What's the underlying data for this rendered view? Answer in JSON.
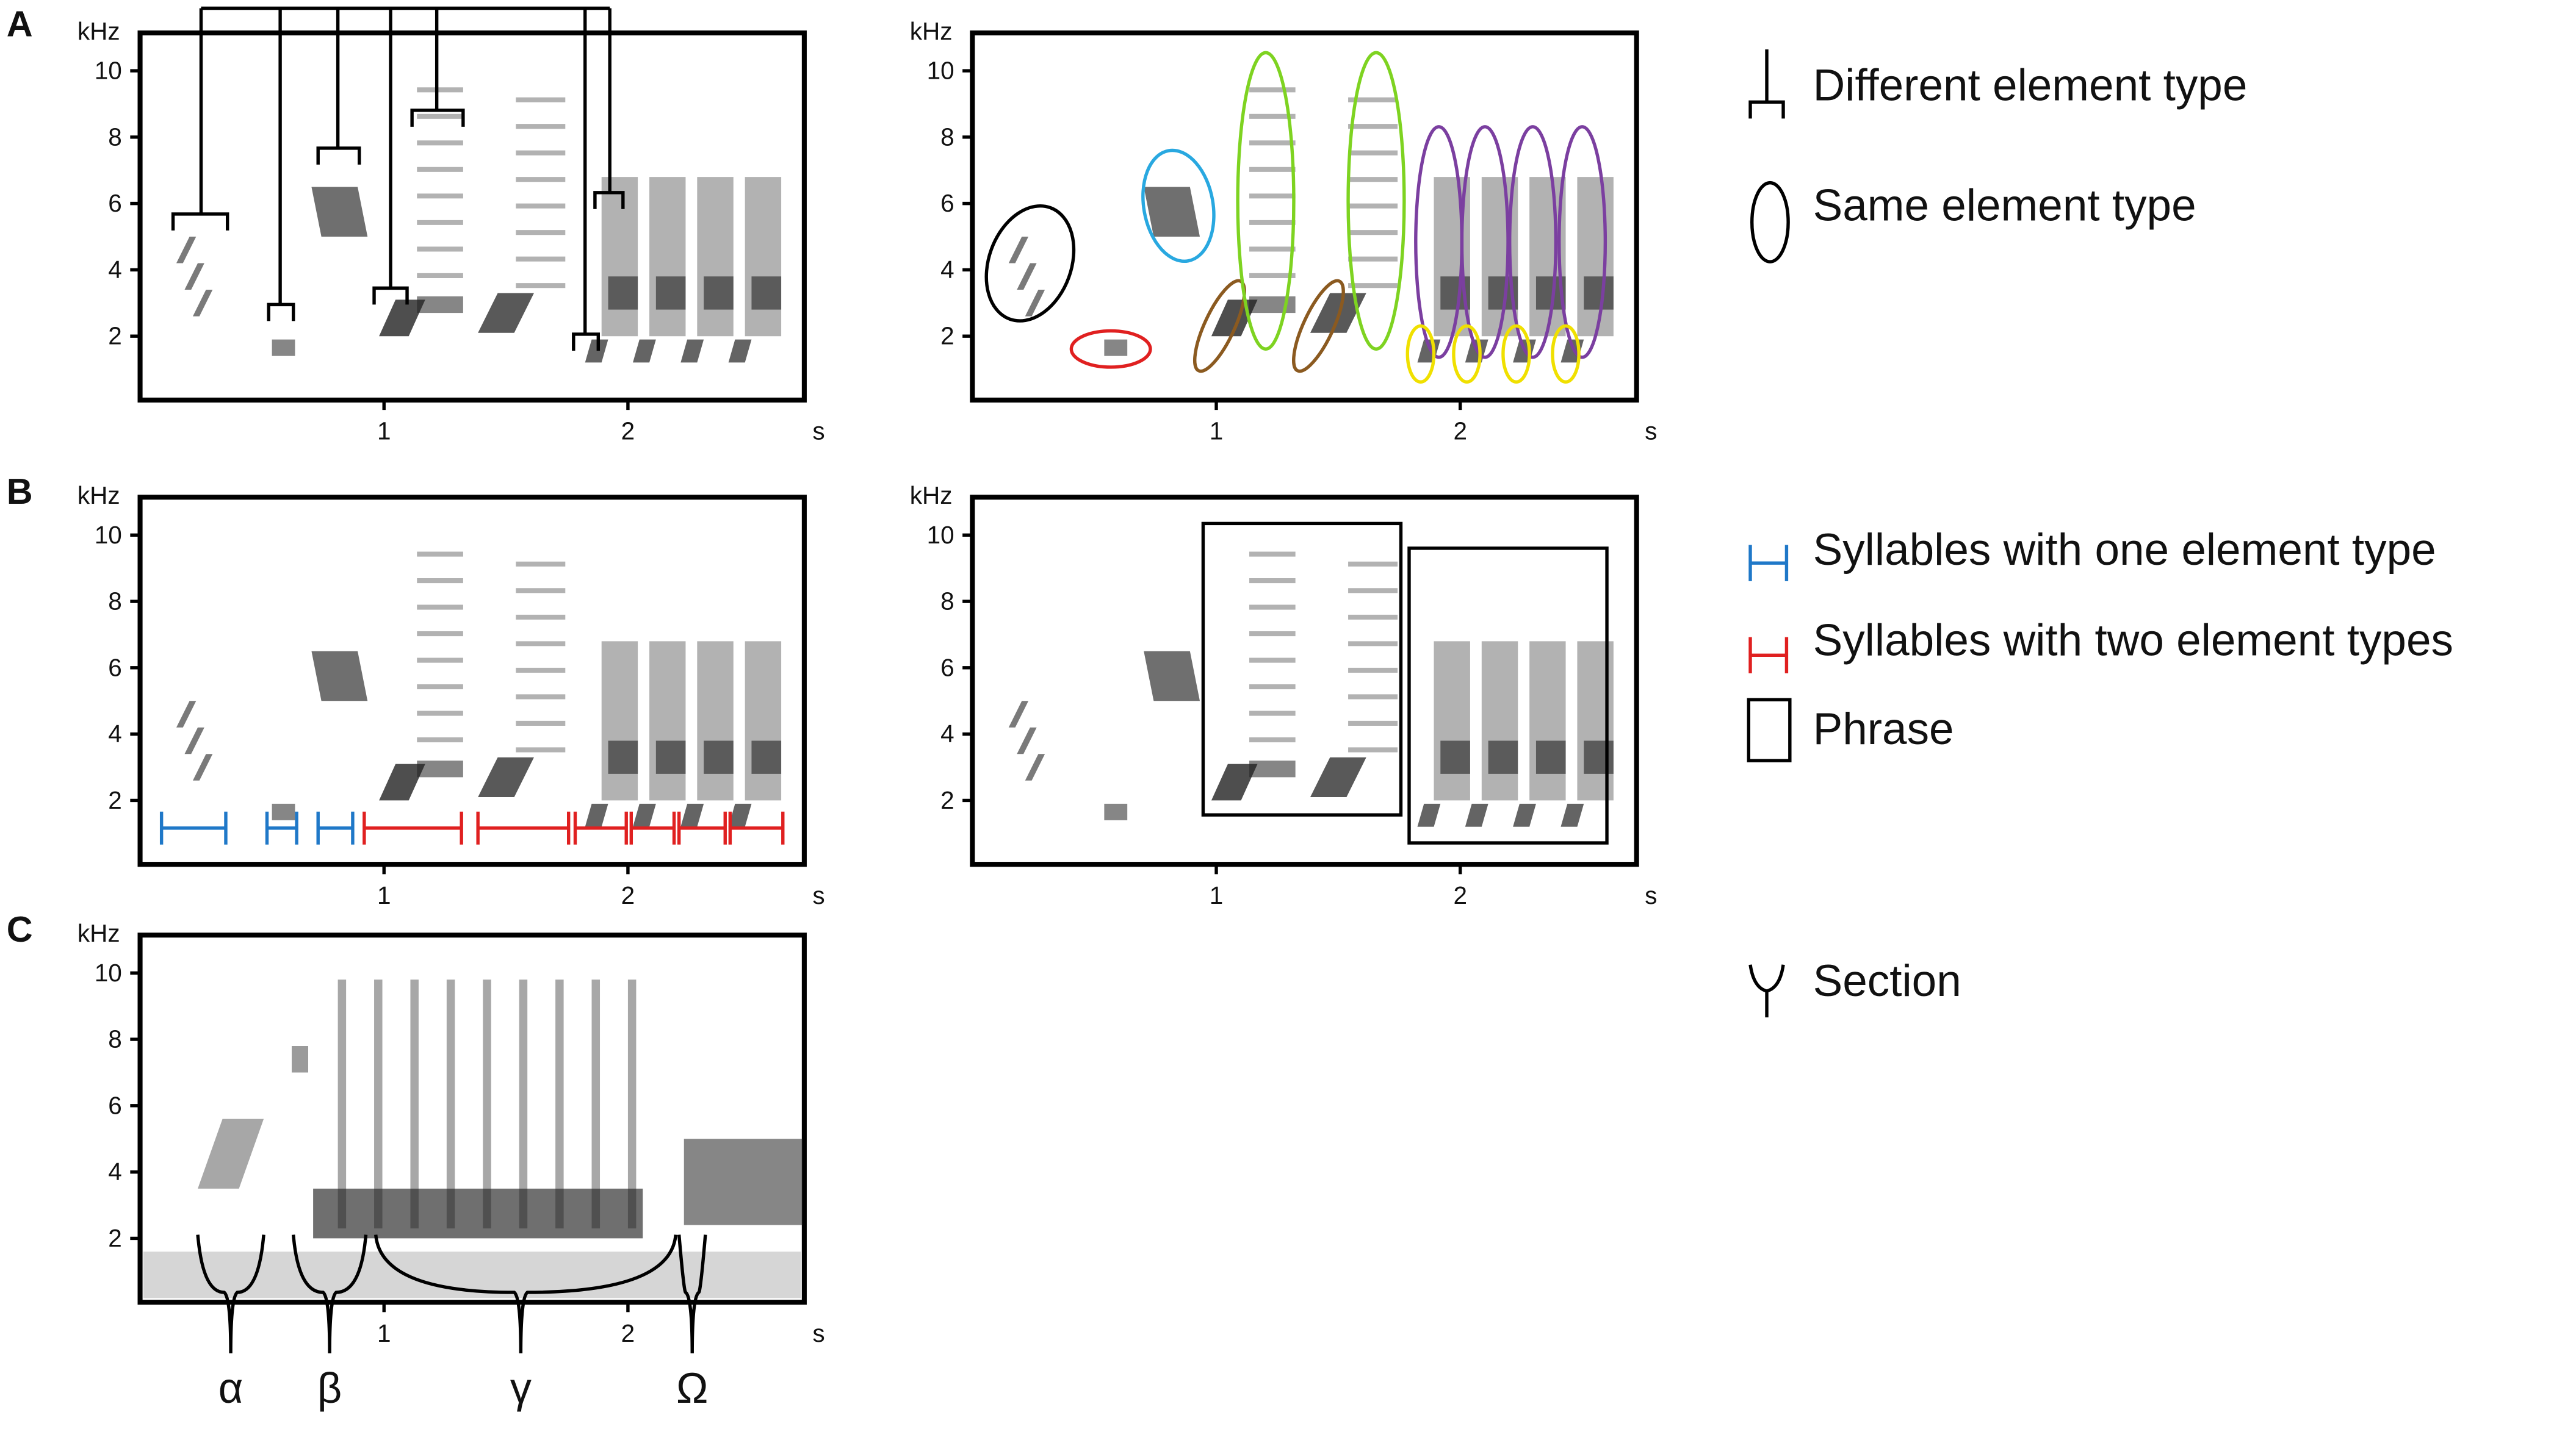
{
  "panels": [
    {
      "label": "A"
    },
    {
      "label": "B"
    },
    {
      "label": "C"
    }
  ],
  "axes": {
    "y_unit": "kHz",
    "x_unit": "s",
    "yticks": [
      10,
      8,
      6,
      4,
      2
    ],
    "xticks": [
      1,
      2
    ]
  },
  "legend": {
    "items": [
      {
        "label": "Different element type"
      },
      {
        "label": "Same element type"
      },
      {
        "label": "Syllables with one element type"
      },
      {
        "label": "Syllables with two element types"
      },
      {
        "label": "Phrase"
      },
      {
        "label": "Section"
      }
    ]
  },
  "sections": [
    "α",
    "β",
    "γ",
    "Ω"
  ]
}
